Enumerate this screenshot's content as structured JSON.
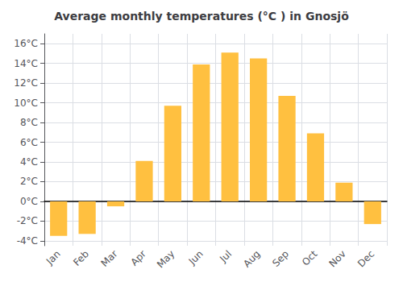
{
  "chart_data": {
    "type": "bar",
    "title": "Average monthly temperatures (°C ) in Gnosjö",
    "categories": [
      "Jan",
      "Feb",
      "Mar",
      "Apr",
      "May",
      "Jun",
      "Jul",
      "Aug",
      "Sep",
      "Oct",
      "Nov",
      "Dec"
    ],
    "values": [
      -3.5,
      -3.3,
      -0.5,
      4.1,
      9.7,
      13.9,
      15.1,
      14.5,
      10.7,
      6.9,
      1.9,
      -2.3
    ],
    "color": "#FFC040",
    "ylim": [
      -4.5,
      17
    ],
    "yticks": [
      {
        "value": -4,
        "label": "-4°C"
      },
      {
        "value": -2,
        "label": "-2°C"
      },
      {
        "value": 0,
        "label": "0°C"
      },
      {
        "value": 2,
        "label": "2°C"
      },
      {
        "value": 4,
        "label": "4°C"
      },
      {
        "value": 6,
        "label": "6°C"
      },
      {
        "value": 8,
        "label": "8°C"
      },
      {
        "value": 10,
        "label": "10°C"
      },
      {
        "value": 12,
        "label": "12°C"
      },
      {
        "value": 14,
        "label": "14°C"
      },
      {
        "value": 16,
        "label": "16°C"
      }
    ],
    "grid": true
  }
}
